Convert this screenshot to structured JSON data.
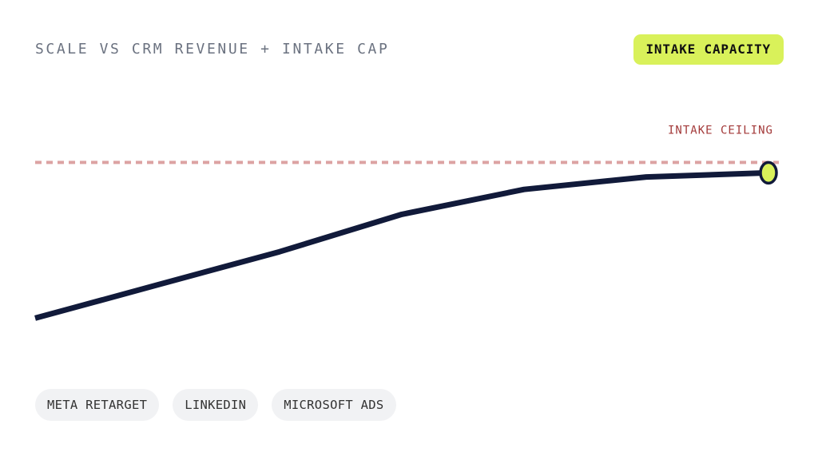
{
  "chart_data": {
    "type": "line",
    "title": "SCALE VS CRM REVENUE + INTAKE CAP",
    "badge": "INTAKE CAPACITY",
    "categories": [
      null,
      null,
      null,
      null,
      null,
      null,
      null
    ],
    "values": [
      16,
      32,
      48,
      66,
      78,
      84,
      86
    ],
    "color": "#111a3a",
    "marker_color": "#d9f15a",
    "ylim": [
      0,
      100
    ],
    "threshold": {
      "label": "INTAKE CEILING",
      "value": 91,
      "color": "#dca3a3",
      "label_color": "#a33a3a"
    },
    "tags": [
      "META RETARGET",
      "LINKEDIN",
      "MICROSOFT ADS"
    ]
  }
}
